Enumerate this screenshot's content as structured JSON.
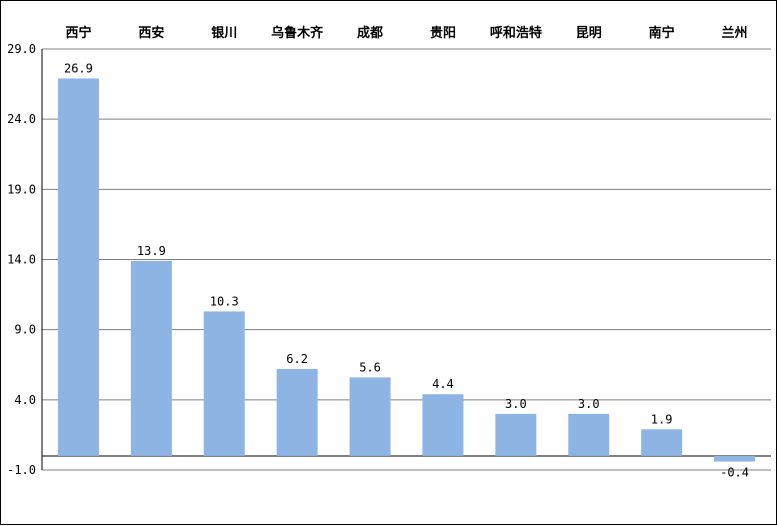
{
  "chart_data": {
    "type": "bar",
    "title": "",
    "xlabel": "",
    "ylabel": "",
    "categories": [
      "西宁",
      "西安",
      "银川",
      "乌鲁木齐",
      "成都",
      "贵阳",
      "呼和浩特",
      "昆明",
      "南宁",
      "兰州"
    ],
    "values": [
      26.9,
      13.9,
      10.3,
      6.2,
      5.6,
      4.4,
      3.0,
      3.0,
      1.9,
      -0.4
    ],
    "value_labels": [
      "26.9",
      "13.9",
      "10.3",
      "6.2",
      "5.6",
      "4.4",
      "3.0",
      "3.0",
      "1.9",
      "-0.4"
    ],
    "ylim": [
      -1.0,
      29.0
    ],
    "yticks": [
      "29.0",
      "24.0",
      "19.0",
      "14.0",
      "9.0",
      "4.0",
      "-1.0"
    ],
    "ytick_values": [
      29,
      24,
      19,
      14,
      9,
      4,
      -1
    ],
    "grid": true,
    "legend": "none",
    "category_labels_position": "top",
    "bar_color": "#8EB4E3",
    "grid_color": "#808080",
    "axis_color": "#000000"
  }
}
